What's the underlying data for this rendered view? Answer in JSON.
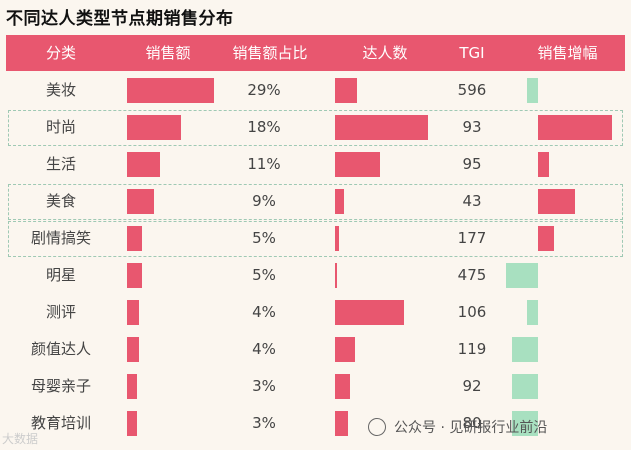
{
  "title": "不同达人类型节点期销售分布",
  "headers": [
    "分类",
    "销售额",
    "销售额占比",
    "达人数",
    "TGI",
    "销售增幅"
  ],
  "colors": {
    "header": "#e8576f",
    "pink_bar": "#e8576f",
    "green_bar": "#a8e0c0",
    "text": "#444444"
  },
  "rows": [
    {
      "category": "美妆",
      "share": "29%",
      "tgi": "596"
    },
    {
      "category": "时尚",
      "share": "18%",
      "tgi": "93"
    },
    {
      "category": "生活",
      "share": "11%",
      "tgi": "95"
    },
    {
      "category": "美食",
      "share": "9%",
      "tgi": "43"
    },
    {
      "category": "剧情搞笑",
      "share": "5%",
      "tgi": "177"
    },
    {
      "category": "明星",
      "share": "5%",
      "tgi": "475"
    },
    {
      "category": "测评",
      "share": "4%",
      "tgi": "106"
    },
    {
      "category": "颜值达人",
      "share": "4%",
      "tgi": "119"
    },
    {
      "category": "母婴亲子",
      "share": "3%",
      "tgi": "92"
    },
    {
      "category": "教育培训",
      "share": "3%",
      "tgi": "80"
    }
  ],
  "chart_data": {
    "type": "table",
    "title": "不同达人类型节点期销售分布",
    "categories": [
      "美妆",
      "时尚",
      "生活",
      "美食",
      "剧情搞笑",
      "明星",
      "测评",
      "颜值达人",
      "母婴亲子",
      "教育培训"
    ],
    "series": [
      {
        "name": "销售额",
        "values": [
          29,
          18,
          11,
          9,
          5,
          5,
          4,
          4,
          3,
          3
        ]
      },
      {
        "name": "销售额占比",
        "values": [
          29,
          18,
          11,
          9,
          5,
          5,
          4,
          4,
          3,
          3
        ]
      },
      {
        "name": "达人数",
        "values": [
          24,
          100,
          48,
          10,
          4,
          1,
          74,
          22,
          16,
          14
        ]
      },
      {
        "name": "TGI",
        "values": [
          596,
          93,
          95,
          43,
          177,
          475,
          106,
          119,
          92,
          80
        ]
      },
      {
        "name": "销售增幅",
        "values": [
          -2,
          14,
          2,
          7,
          3,
          -6,
          -2,
          -5,
          -5,
          -5
        ]
      }
    ]
  },
  "watermark": {
    "text": "公众号 · 见研报行业前沿",
    "corner": "大数据"
  },
  "dashed_rows": [
    1,
    3,
    4
  ]
}
